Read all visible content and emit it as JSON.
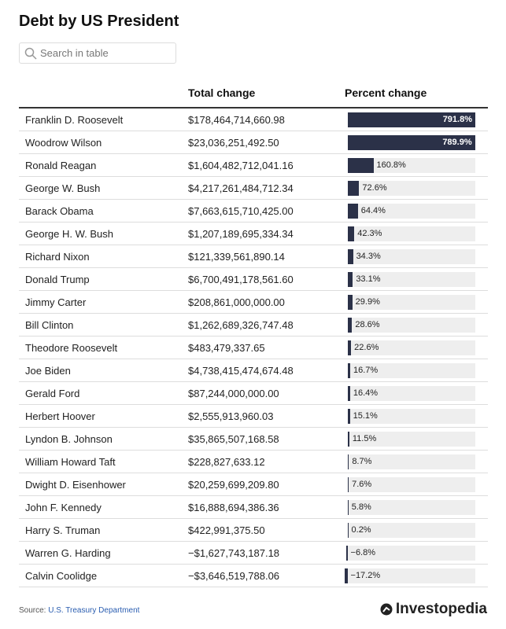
{
  "title": "Debt by US President",
  "search_placeholder": "Search in table",
  "table": {
    "columns": [
      "Total change",
      "Percent change"
    ],
    "rows": [
      {
        "name": "Franklin D. Roosevelt",
        "total": "$178,464,714,660.98",
        "percent": 791.8,
        "percent_label": "791.8%"
      },
      {
        "name": "Woodrow Wilson",
        "total": "$23,036,251,492.50",
        "percent": 789.9,
        "percent_label": "789.9%"
      },
      {
        "name": "Ronald Reagan",
        "total": "$1,604,482,712,041.16",
        "percent": 160.8,
        "percent_label": "160.8%"
      },
      {
        "name": "George W. Bush",
        "total": "$4,217,261,484,712.34",
        "percent": 72.6,
        "percent_label": "72.6%"
      },
      {
        "name": "Barack Obama",
        "total": "$7,663,615,710,425.00",
        "percent": 64.4,
        "percent_label": "64.4%"
      },
      {
        "name": "George H. W. Bush",
        "total": "$1,207,189,695,334.34",
        "percent": 42.3,
        "percent_label": "42.3%"
      },
      {
        "name": "Richard Nixon",
        "total": "$121,339,561,890.14",
        "percent": 34.3,
        "percent_label": "34.3%"
      },
      {
        "name": "Donald Trump",
        "total": "$6,700,491,178,561.60",
        "percent": 33.1,
        "percent_label": "33.1%"
      },
      {
        "name": "Jimmy Carter",
        "total": "$208,861,000,000.00",
        "percent": 29.9,
        "percent_label": "29.9%"
      },
      {
        "name": "Bill Clinton",
        "total": "$1,262,689,326,747.48",
        "percent": 28.6,
        "percent_label": "28.6%"
      },
      {
        "name": "Theodore Roosevelt",
        "total": "$483,479,337.65",
        "percent": 22.6,
        "percent_label": "22.6%"
      },
      {
        "name": "Joe Biden",
        "total": "$4,738,415,474,674.48",
        "percent": 16.7,
        "percent_label": "16.7%"
      },
      {
        "name": "Gerald Ford",
        "total": "$87,244,000,000.00",
        "percent": 16.4,
        "percent_label": "16.4%"
      },
      {
        "name": "Herbert Hoover",
        "total": "$2,555,913,960.03",
        "percent": 15.1,
        "percent_label": "15.1%"
      },
      {
        "name": "Lyndon B. Johnson",
        "total": "$35,865,507,168.58",
        "percent": 11.5,
        "percent_label": "11.5%"
      },
      {
        "name": "William Howard Taft",
        "total": "$228,827,633.12",
        "percent": 8.7,
        "percent_label": "8.7%"
      },
      {
        "name": "Dwight D. Eisenhower",
        "total": "$20,259,699,209.80",
        "percent": 7.6,
        "percent_label": "7.6%"
      },
      {
        "name": "John F. Kennedy",
        "total": "$16,888,694,386.36",
        "percent": 5.8,
        "percent_label": "5.8%"
      },
      {
        "name": "Harry S. Truman",
        "total": "$422,991,375.50",
        "percent": 0.2,
        "percent_label": "0.2%"
      },
      {
        "name": "Warren G. Harding",
        "total": "−$1,627,743,187.18",
        "percent": -6.8,
        "percent_label": "−6.8%"
      },
      {
        "name": "Calvin Coolidge",
        "total": "−$3,646,519,788.06",
        "percent": -17.2,
        "percent_label": "−17.2%"
      }
    ]
  },
  "footer": {
    "source_label": "Source:",
    "source_link": "U.S. Treasury Department",
    "logo": "Investopedia"
  }
}
